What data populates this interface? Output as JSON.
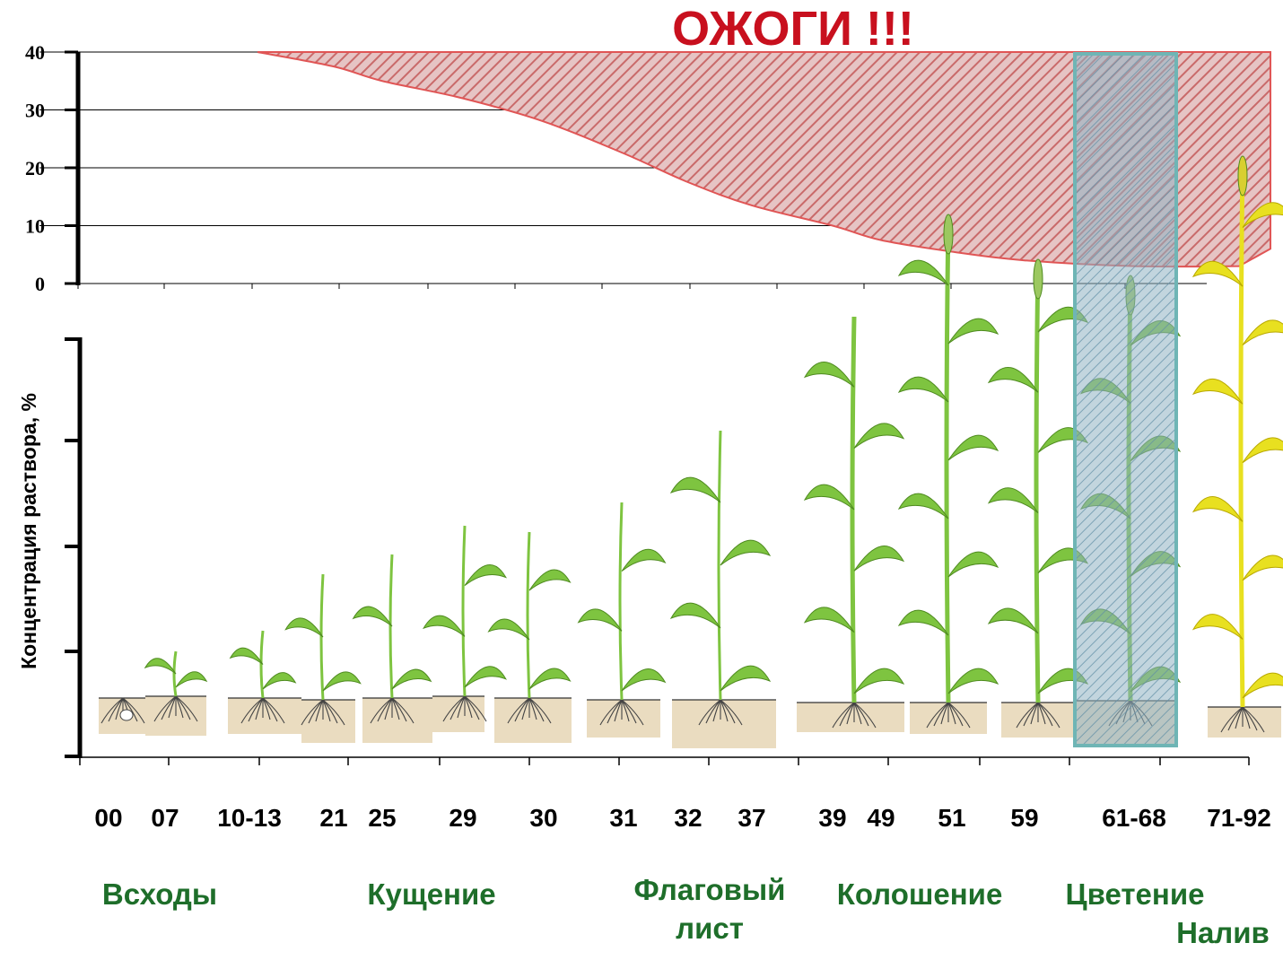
{
  "chart_data": {
    "type": "area",
    "title": "ОЖОГИ !!!",
    "ylabel": "Концентрация раствора, %",
    "ylim": [
      0,
      40
    ],
    "yticks": [
      "40",
      "30",
      "20",
      "10",
      "0"
    ],
    "grid": true,
    "x": [
      "10-13",
      "21",
      "25",
      "29",
      "30",
      "31",
      "32",
      "37",
      "39",
      "49",
      "51",
      "59",
      "61-68",
      "71-92"
    ],
    "series": [
      {
        "values": [
          40,
          37.5,
          35,
          32,
          28,
          22.5,
          17.5,
          13.5,
          10,
          7.5,
          5.5,
          4,
          3,
          3
        ]
      }
    ],
    "stages": [
      "00",
      "07",
      "10-13",
      "21",
      "25",
      "29",
      "30",
      "31",
      "32",
      "37",
      "39",
      "49",
      "51",
      "59",
      "61-68",
      "71-92"
    ],
    "phases": [
      "Всходы",
      "Кущение",
      "Флаговый",
      "лист",
      "Колошение",
      "Цветение",
      "Налив"
    ],
    "highlight_stage": "61-68",
    "colors": {
      "danger_fill": "#d9a7a7",
      "danger_hatch": "#c96a6a",
      "danger_line": "#e05555",
      "highlight_border": "#6fb5b5",
      "highlight_fill": "#8fb3c2",
      "plant_green": "#7ec440",
      "plant_yellow": "#e8e020",
      "soil": "#eadcc0",
      "phase_text": "#1e6e2a",
      "warning_text": "#c8101e"
    }
  }
}
